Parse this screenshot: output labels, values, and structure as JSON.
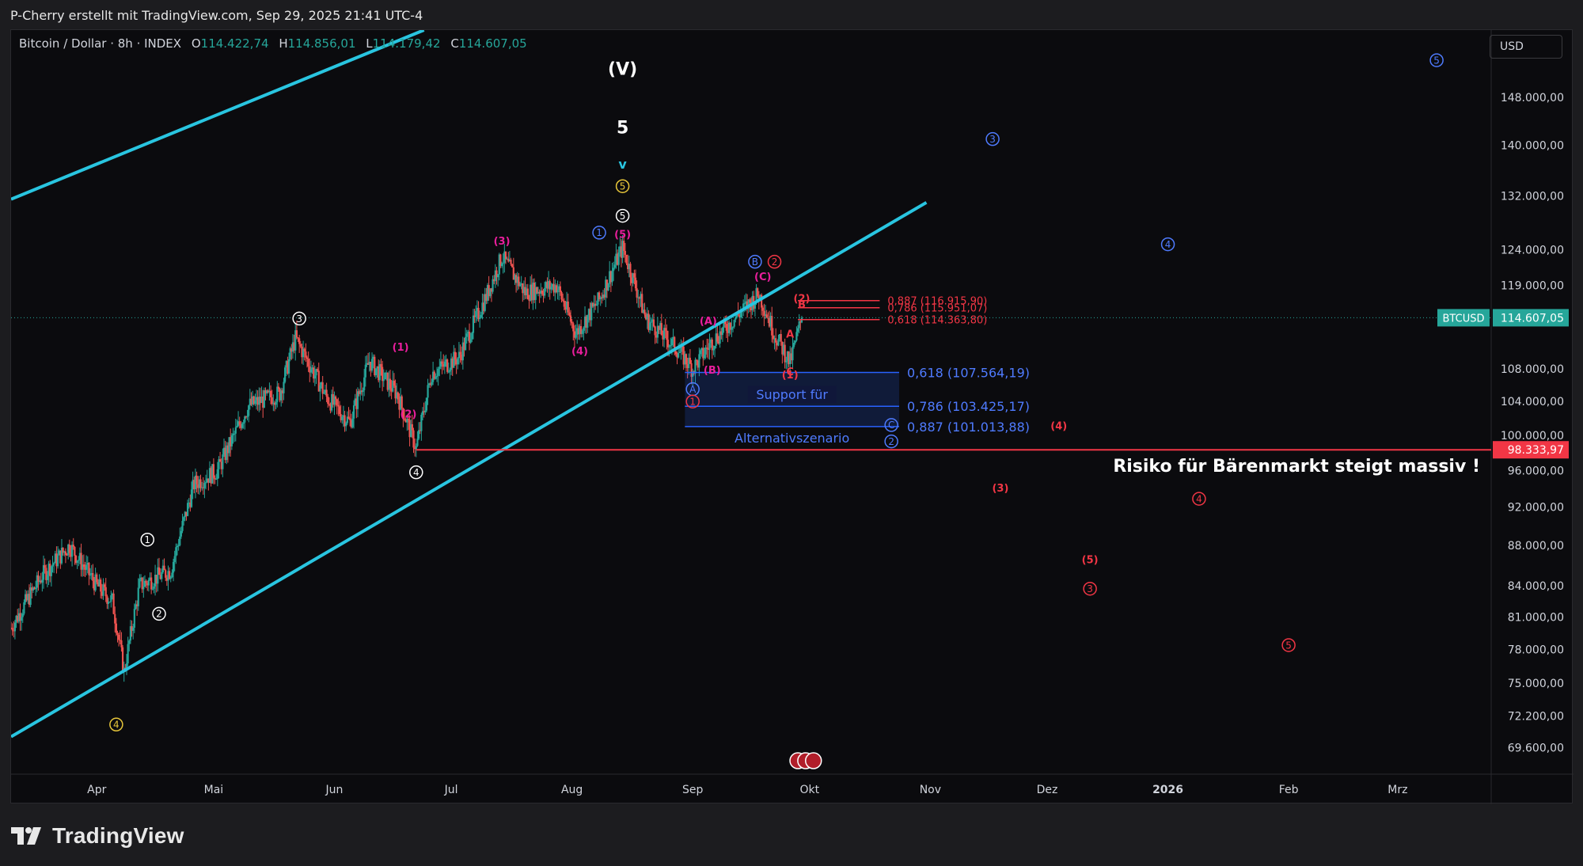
{
  "header": {
    "credit": "P-Cherry erstellt mit TradingView.com, Sep 29, 2025 21:41 UTC-4"
  },
  "legend": {
    "symbol": "Bitcoin / Dollar · 8h · INDEX",
    "o_label": "O",
    "o_value": "114.422,74",
    "h_label": "H",
    "h_value": "114.856,01",
    "l_label": "L",
    "l_value": "114.179,42",
    "c_label": "C",
    "c_value": "114.607,05"
  },
  "currency_label": "USD",
  "brand": {
    "name": "TradingView"
  },
  "colors": {
    "up": "#26a69a",
    "down": "#ef5350",
    "channel": "#29c5e0",
    "risk": "#f23645",
    "blue": "#2962ff",
    "magenta": "#e91e9c",
    "yellow": "#e8c73a"
  },
  "chart_data": {
    "type": "candlestick",
    "symbol": "BTCUSD",
    "y_axis": {
      "scale": "log",
      "range": [
        67500,
        160000
      ],
      "ticks": [
        "148.000,00",
        "140.000,00",
        "132.000,00",
        "124.000,00",
        "119.000,00",
        "108.000,00",
        "104.000,00",
        "100.000,00",
        "96.000,00",
        "92.000,00",
        "88.000,00",
        "84.000,00",
        "81.000,00",
        "78.000,00",
        "75.000,00",
        "72.200,00",
        "69.600,00"
      ],
      "tick_values": [
        148000,
        140000,
        132000,
        124000,
        119000,
        108000,
        104000,
        100000,
        96000,
        92000,
        88000,
        84000,
        81000,
        78000,
        75000,
        72200,
        69600
      ]
    },
    "x_axis": {
      "ticks": [
        "Apr",
        "Mai",
        "Jun",
        "Jul",
        "Aug",
        "Sep",
        "Okt",
        "Nov",
        "Dez",
        "2026",
        "Feb",
        "Mrz"
      ],
      "tick_dates": [
        "2025-04-01",
        "2025-05-01",
        "2025-06-01",
        "2025-07-01",
        "2025-08-01",
        "2025-09-01",
        "2025-10-01",
        "2025-11-01",
        "2025-12-01",
        "2026-01-01",
        "2026-02-01",
        "2026-03-01"
      ],
      "range": [
        "2025-03-10",
        "2026-03-25"
      ]
    },
    "price_path": [
      [
        "2025-03-10",
        80000
      ],
      [
        "2025-03-18",
        85000
      ],
      [
        "2025-03-25",
        88000
      ],
      [
        "2025-04-01",
        84000
      ],
      [
        "2025-04-05",
        82500
      ],
      [
        "2025-04-08",
        76000
      ],
      [
        "2025-04-12",
        84000
      ],
      [
        "2025-04-20",
        85500
      ],
      [
        "2025-04-26",
        94500
      ],
      [
        "2025-05-02",
        96000
      ],
      [
        "2025-05-10",
        103500
      ],
      [
        "2025-05-18",
        105000
      ],
      [
        "2025-05-22",
        111900
      ],
      [
        "2025-05-30",
        104500
      ],
      [
        "2025-06-05",
        101500
      ],
      [
        "2025-06-10",
        109000
      ],
      [
        "2025-06-17",
        105000
      ],
      [
        "2025-06-22",
        98500
      ],
      [
        "2025-06-26",
        107500
      ],
      [
        "2025-07-03",
        109500
      ],
      [
        "2025-07-10",
        117500
      ],
      [
        "2025-07-14",
        123000
      ],
      [
        "2025-07-20",
        118000
      ],
      [
        "2025-07-28",
        119000
      ],
      [
        "2025-08-02",
        112500
      ],
      [
        "2025-08-08",
        117000
      ],
      [
        "2025-08-14",
        124300
      ],
      [
        "2025-08-20",
        114500
      ],
      [
        "2025-08-28",
        110500
      ],
      [
        "2025-09-01",
        108000
      ],
      [
        "2025-09-06",
        111500
      ],
      [
        "2025-09-18",
        117800
      ],
      [
        "2025-09-22",
        112500
      ],
      [
        "2025-09-26",
        108800
      ],
      [
        "2025-09-29",
        114607
      ]
    ],
    "last_price": {
      "label": "BTCUSD",
      "value": "114.607,05",
      "y": 114607.05
    },
    "risk_line": {
      "value": "98.333,97",
      "y": 98333.97,
      "start": "2025-06-22",
      "text": "Risiko für Bärenmarkt steigt massiv !"
    },
    "channel_lines": [
      {
        "from": [
          "2025-03-10",
          131500
        ],
        "to": [
          "2025-06-24",
          160000
        ]
      },
      {
        "from": [
          "2025-03-10",
          70500
        ],
        "to": [
          "2025-10-31",
          131000
        ]
      }
    ],
    "fib_red": [
      {
        "label": "0,887 (116.915,90)",
        "y": 116915.9
      },
      {
        "label": "0,786 (115.951,07)",
        "y": 115951.07
      },
      {
        "label": "0,618 (114.363,80)",
        "y": 114363.8
      }
    ],
    "fib_blue": [
      {
        "label": "0,618 (107.564,19)",
        "y": 107564.19
      },
      {
        "label": "0,786 (103.425,17)",
        "y": 103425.17
      },
      {
        "label": "0,887 (101.013,88)",
        "y": 101013.88
      }
    ],
    "support_box": {
      "line1": "Support für",
      "line2": "Alternativszenario",
      "from": "2025-08-30",
      "to": "2025-10-24",
      "top": 107564.19,
      "bottom": 101013.88
    },
    "wave_labels": [
      {
        "text": "(V)",
        "x": "2025-08-14",
        "y": 153000,
        "style": "white-big"
      },
      {
        "text": "5",
        "x": "2025-08-14",
        "y": 143000,
        "style": "white-big"
      },
      {
        "text": "v",
        "x": "2025-08-14",
        "y": 137000,
        "style": "cyan"
      },
      {
        "text": "5",
        "x": "2025-08-14",
        "y": 133500,
        "style": "circle-yellow"
      },
      {
        "text": "5",
        "x": "2025-08-14",
        "y": 129000,
        "style": "circle-white"
      },
      {
        "text": "(5)",
        "x": "2025-08-14",
        "y": 126300,
        "style": "magenta"
      },
      {
        "text": "1",
        "x": "2025-08-08",
        "y": 126500,
        "style": "circle-blue"
      },
      {
        "text": "(3)",
        "x": "2025-07-14",
        "y": 125300,
        "style": "magenta"
      },
      {
        "text": "3",
        "x": "2025-05-23",
        "y": 114500,
        "style": "circle-white"
      },
      {
        "text": "(1)",
        "x": "2025-06-18",
        "y": 110800,
        "style": "magenta"
      },
      {
        "text": "(2)",
        "x": "2025-06-20",
        "y": 102500,
        "style": "magenta"
      },
      {
        "text": "(4)",
        "x": "2025-08-03",
        "y": 110300,
        "style": "magenta"
      },
      {
        "text": "4",
        "x": "2025-06-22",
        "y": 95800,
        "style": "circle-white"
      },
      {
        "text": "1",
        "x": "2025-04-14",
        "y": 88600,
        "style": "circle-white"
      },
      {
        "text": "2",
        "x": "2025-04-17",
        "y": 81300,
        "style": "circle-white"
      },
      {
        "text": "4",
        "x": "2025-04-06",
        "y": 71500,
        "style": "circle-yellow"
      },
      {
        "text": "(A)",
        "x": "2025-09-05",
        "y": 114200,
        "style": "magenta"
      },
      {
        "text": "(B)",
        "x": "2025-09-06",
        "y": 107900,
        "style": "magenta"
      },
      {
        "text": "(C)",
        "x": "2025-09-19",
        "y": 120200,
        "style": "magenta"
      },
      {
        "text": "B",
        "x": "2025-09-17",
        "y": 122300,
        "style": "circle-blue"
      },
      {
        "text": "2",
        "x": "2025-09-22",
        "y": 122300,
        "style": "circle-red"
      },
      {
        "text": "(2)",
        "x": "2025-09-29",
        "y": 117200,
        "style": "red"
      },
      {
        "text": "A",
        "x": "2025-09-26",
        "y": 112500,
        "style": "red"
      },
      {
        "text": "B",
        "x": "2025-09-29",
        "y": 116400,
        "style": "red"
      },
      {
        "text": "(1)",
        "x": "2025-09-26",
        "y": 107300,
        "style": "red"
      },
      {
        "text": "C",
        "x": "2025-09-26",
        "y": 107700,
        "style": "red"
      },
      {
        "text": "A",
        "x": "2025-09-01",
        "y": 105500,
        "style": "circle-blue"
      },
      {
        "text": "1",
        "x": "2025-09-01",
        "y": 104000,
        "style": "circle-red"
      },
      {
        "text": "C",
        "x": "2025-10-22",
        "y": 101200,
        "style": "circle-blue"
      },
      {
        "text": "2",
        "x": "2025-10-22",
        "y": 99300,
        "style": "circle-blue"
      },
      {
        "text": "3",
        "x": "2025-11-17",
        "y": 141000,
        "style": "circle-blue"
      },
      {
        "text": "4",
        "x": "2026-01-01",
        "y": 124800,
        "style": "circle-blue"
      },
      {
        "text": "5",
        "x": "2026-03-11",
        "y": 154500,
        "style": "circle-blue"
      },
      {
        "text": "(4)",
        "x": "2025-12-04",
        "y": 101100,
        "style": "red"
      },
      {
        "text": "(3)",
        "x": "2025-11-19",
        "y": 94100,
        "style": "red"
      },
      {
        "text": "4",
        "x": "2026-01-09",
        "y": 92900,
        "style": "circle-red"
      },
      {
        "text": "(5)",
        "x": "2025-12-12",
        "y": 86600,
        "style": "red"
      },
      {
        "text": "3",
        "x": "2025-12-12",
        "y": 83700,
        "style": "circle-red"
      },
      {
        "text": "5",
        "x": "2026-02-01",
        "y": 78400,
        "style": "circle-red"
      }
    ]
  }
}
